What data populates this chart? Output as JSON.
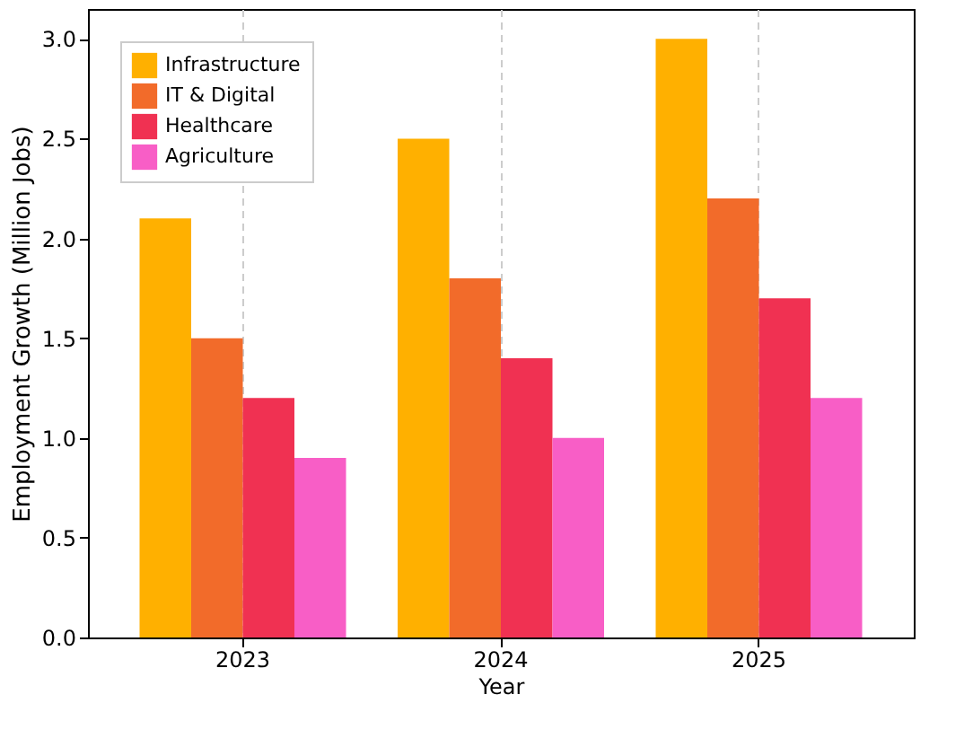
{
  "chart_data": {
    "type": "bar",
    "xlabel": "Year",
    "ylabel": "Employment Growth (Million Jobs)",
    "categories": [
      "2023",
      "2024",
      "2025"
    ],
    "series": [
      {
        "name": "Infrastructure",
        "color": "#ffb000",
        "values": [
          2.1,
          2.5,
          3.0
        ]
      },
      {
        "name": "IT & Digital",
        "color": "#f26b2a",
        "values": [
          1.5,
          1.8,
          2.2
        ]
      },
      {
        "name": "Healthcare",
        "color": "#f03152",
        "values": [
          1.2,
          1.4,
          1.7
        ]
      },
      {
        "name": "Agriculture",
        "color": "#f85ec6",
        "values": [
          0.9,
          1.0,
          1.2
        ]
      }
    ],
    "ylim": [
      0,
      3.15
    ],
    "yticks": [
      {
        "value": 0,
        "label": "0.0"
      },
      {
        "value": 0.5,
        "label": "0.5"
      },
      {
        "value": 1,
        "label": "1.0"
      },
      {
        "value": 1.5,
        "label": "1.5"
      },
      {
        "value": 2,
        "label": "2.0"
      },
      {
        "value": 2.5,
        "label": "2.5"
      },
      {
        "value": 3,
        "label": "3.0"
      }
    ],
    "grid": "x",
    "legend": "top left"
  }
}
